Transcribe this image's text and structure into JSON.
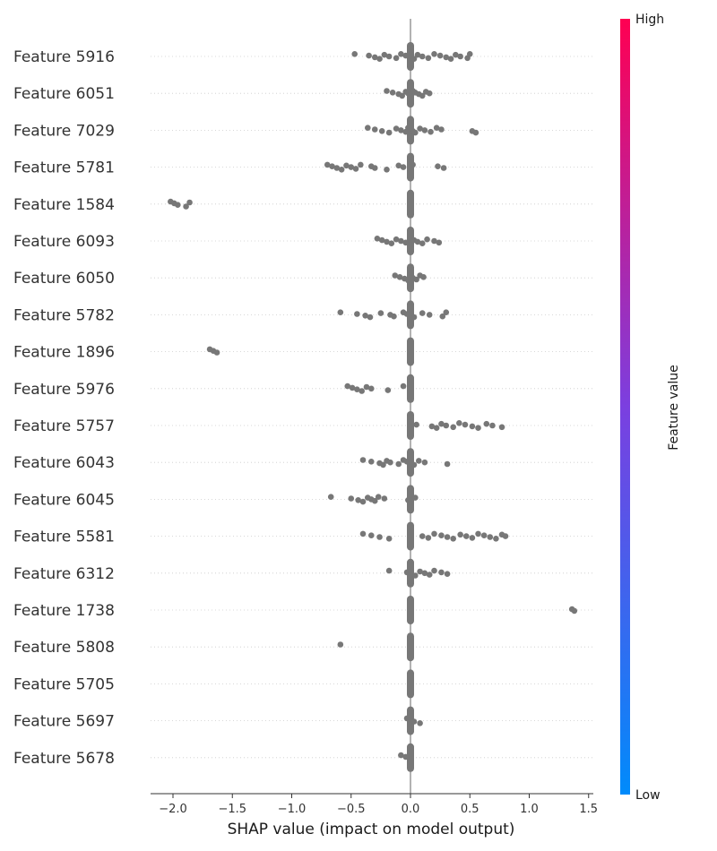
{
  "chart_data": {
    "type": "scatter",
    "subtype": "shap-beeswarm",
    "title": "",
    "xlabel": "SHAP value (impact on model output)",
    "ylabel": "",
    "xlim": [
      -2.2,
      1.55
    ],
    "xticks": [
      -2.0,
      -1.5,
      -1.0,
      -0.5,
      0.0,
      0.5,
      1.0,
      1.5
    ],
    "xtick_labels": [
      "−2.0",
      "−1.5",
      "−1.0",
      "−0.5",
      "0.0",
      "0.5",
      "1.0",
      "1.5"
    ],
    "point_color": "#777777",
    "zero_line_color": "#999999",
    "colorbar": {
      "label": "Feature value",
      "high_label": "High",
      "low_label": "Low",
      "top_color": "#ff0052",
      "mid_color": "#7b3fe0",
      "bottom_color": "#008bfb"
    },
    "features": [
      {
        "name": "Feature 5916",
        "points": [
          -0.47,
          -0.35,
          -0.3,
          -0.26,
          -0.22,
          -0.18,
          -0.12,
          -0.08,
          -0.04,
          0.0,
          0.03,
          0.06,
          0.1,
          0.15,
          0.2,
          0.25,
          0.3,
          0.34,
          0.38,
          0.42,
          0.48,
          0.5
        ]
      },
      {
        "name": "Feature 6051",
        "points": [
          -0.2,
          -0.15,
          -0.1,
          -0.07,
          -0.04,
          -0.02,
          0.0,
          0.02,
          0.04,
          0.07,
          0.1,
          0.13,
          0.16
        ]
      },
      {
        "name": "Feature 7029",
        "points": [
          -0.36,
          -0.3,
          -0.24,
          -0.18,
          -0.12,
          -0.08,
          -0.04,
          -0.02,
          0.0,
          0.02,
          0.04,
          0.08,
          0.12,
          0.17,
          0.22,
          0.26,
          0.52,
          0.55
        ]
      },
      {
        "name": "Feature 5781",
        "points": [
          -0.7,
          -0.66,
          -0.62,
          -0.58,
          -0.54,
          -0.5,
          -0.46,
          -0.42,
          -0.33,
          -0.3,
          -0.2,
          -0.1,
          -0.06,
          0.0,
          0.02,
          0.23,
          0.28
        ]
      },
      {
        "name": "Feature 1584",
        "points": [
          -2.02,
          -1.99,
          -1.96,
          -1.89,
          -1.86,
          0.0
        ]
      },
      {
        "name": "Feature 6093",
        "points": [
          -0.28,
          -0.24,
          -0.2,
          -0.16,
          -0.12,
          -0.08,
          -0.04,
          0.0,
          0.03,
          0.06,
          0.1,
          0.14,
          0.2,
          0.24
        ]
      },
      {
        "name": "Feature 6050",
        "points": [
          -0.13,
          -0.09,
          -0.05,
          -0.02,
          0.0,
          0.02,
          0.05,
          0.08,
          0.11
        ]
      },
      {
        "name": "Feature 5782",
        "points": [
          -0.59,
          -0.45,
          -0.38,
          -0.34,
          -0.25,
          -0.17,
          -0.14,
          -0.06,
          -0.03,
          0.0,
          0.03,
          0.1,
          0.16,
          0.27,
          0.3
        ]
      },
      {
        "name": "Feature 1896",
        "points": [
          -1.69,
          -1.66,
          -1.63,
          0.0
        ]
      },
      {
        "name": "Feature 5976",
        "points": [
          -0.53,
          -0.49,
          -0.45,
          -0.41,
          -0.37,
          -0.33,
          -0.19,
          -0.06,
          0.0
        ]
      },
      {
        "name": "Feature 5757",
        "points": [
          0.0,
          0.05,
          0.18,
          0.22,
          0.26,
          0.3,
          0.36,
          0.41,
          0.46,
          0.52,
          0.57,
          0.64,
          0.69,
          0.77
        ]
      },
      {
        "name": "Feature 6043",
        "points": [
          -0.4,
          -0.33,
          -0.26,
          -0.23,
          -0.2,
          -0.17,
          -0.1,
          -0.06,
          -0.03,
          0.0,
          0.03,
          0.07,
          0.12,
          0.31
        ]
      },
      {
        "name": "Feature 6045",
        "points": [
          -0.67,
          -0.5,
          -0.44,
          -0.4,
          -0.36,
          -0.33,
          -0.3,
          -0.27,
          -0.22,
          -0.02,
          0.0,
          0.04
        ]
      },
      {
        "name": "Feature 5581",
        "points": [
          -0.4,
          -0.33,
          -0.26,
          -0.18,
          0.0,
          0.1,
          0.15,
          0.2,
          0.26,
          0.31,
          0.36,
          0.42,
          0.47,
          0.52,
          0.57,
          0.62,
          0.67,
          0.72,
          0.77,
          0.8
        ]
      },
      {
        "name": "Feature 6312",
        "points": [
          -0.18,
          -0.03,
          0.0,
          0.04,
          0.08,
          0.12,
          0.16,
          0.2,
          0.26,
          0.31
        ]
      },
      {
        "name": "Feature 1738",
        "points": [
          0.0,
          1.36,
          1.38
        ]
      },
      {
        "name": "Feature 5808",
        "points": [
          -0.59,
          0.0
        ]
      },
      {
        "name": "Feature 5705",
        "points": [
          0.0
        ]
      },
      {
        "name": "Feature 5697",
        "points": [
          -0.03,
          0.0,
          0.03,
          0.08
        ]
      },
      {
        "name": "Feature 5678",
        "points": [
          -0.08,
          -0.04,
          0.0
        ]
      }
    ]
  }
}
